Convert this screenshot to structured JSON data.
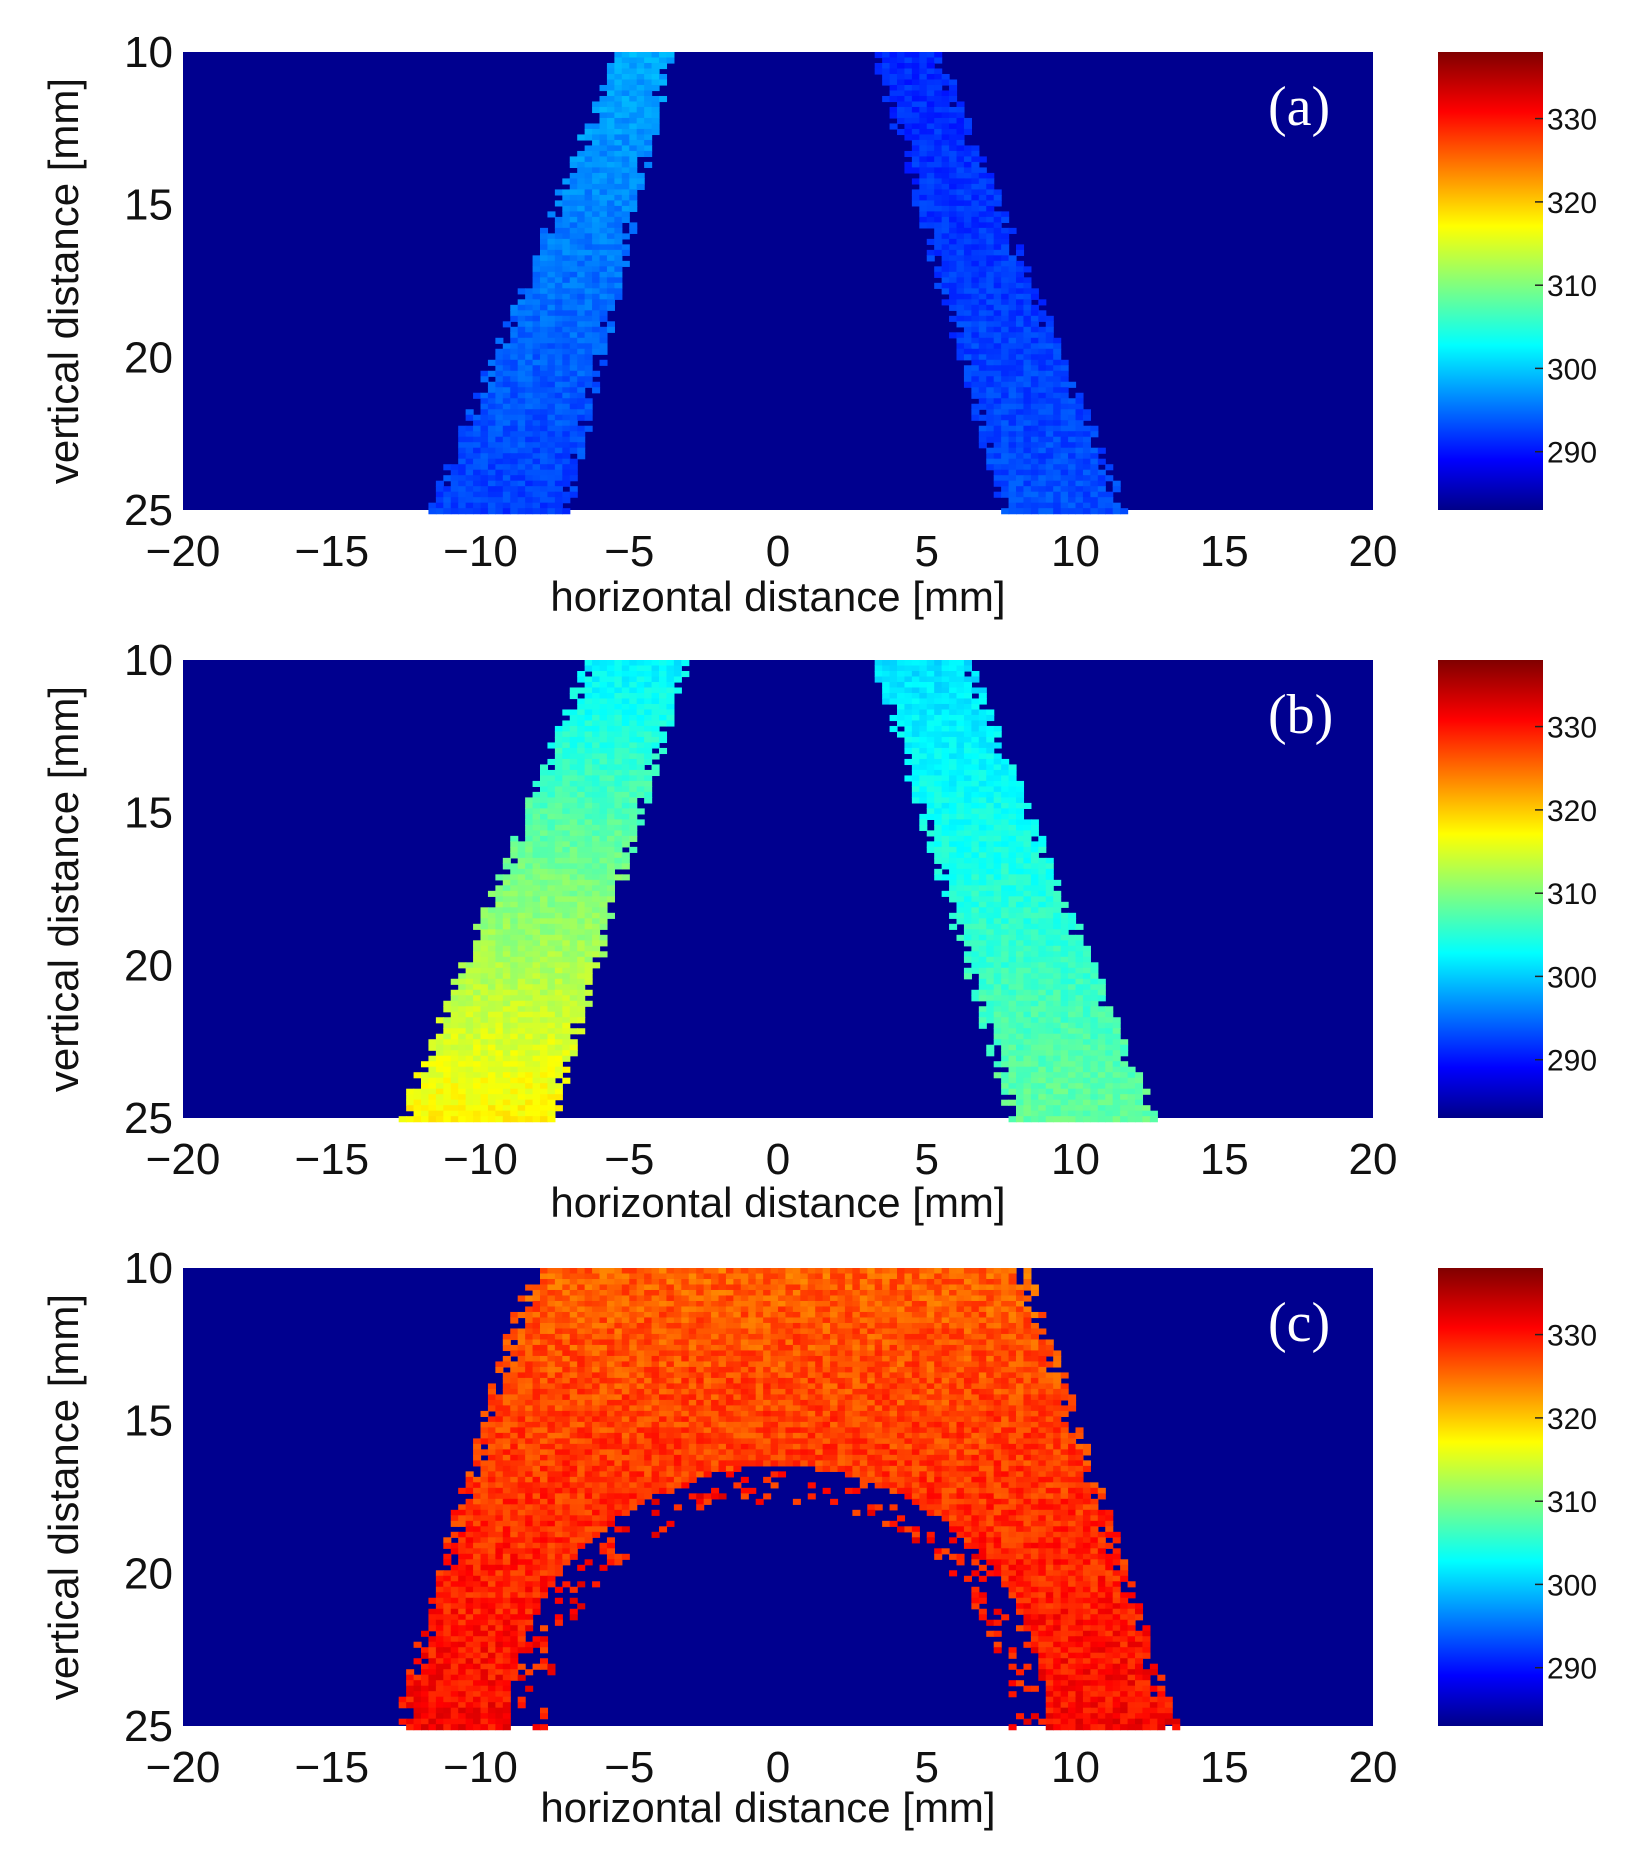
{
  "chart_data": [
    {
      "type": "heatmap",
      "panel_label": "(a)",
      "xlabel": "horizontal distance [mm]",
      "ylabel": "vertical distance [mm]",
      "xlim": [
        -20,
        20
      ],
      "ylim": [
        10,
        25
      ],
      "x_ticks": [
        "−20",
        "−15",
        "−10",
        "−5",
        "0",
        "5",
        "10",
        "15",
        "20"
      ],
      "y_ticks": [
        "10",
        "15",
        "20",
        "25"
      ],
      "colorbar": {
        "min": 283,
        "max": 338,
        "ticks": [
          "290",
          "300",
          "310",
          "320",
          "330"
        ]
      },
      "background_value": 283,
      "description_values": {
        "left_jet": {
          "x_at_y10": [
            -5.5,
            -3.5
          ],
          "x_at_y25": [
            -11.8,
            -7.0
          ],
          "value_top": 299,
          "value_bottom": 293
        },
        "right_jet": {
          "x_at_y10": [
            3.2,
            5.5
          ],
          "x_at_y25": [
            7.5,
            11.8
          ],
          "value_top": 292,
          "value_bottom": 294
        }
      }
    },
    {
      "type": "heatmap",
      "panel_label": "(b)",
      "xlabel": "horizontal distance [mm]",
      "ylabel": "vertical distance [mm]",
      "xlim": [
        -20,
        20
      ],
      "ylim": [
        10,
        25
      ],
      "x_ticks": [
        "−20",
        "−15",
        "−10",
        "−5",
        "0",
        "5",
        "10",
        "15",
        "20"
      ],
      "y_ticks": [
        "10",
        "15",
        "20",
        "25"
      ],
      "colorbar": {
        "min": 283,
        "max": 338,
        "ticks": [
          "290",
          "300",
          "310",
          "320",
          "330"
        ]
      },
      "background_value": 283,
      "description_values": {
        "left_jet": {
          "x_at_y10": [
            -6.5,
            -3.0
          ],
          "x_at_y25": [
            -12.8,
            -7.5
          ],
          "value_top": 303,
          "value_bottom": 318
        },
        "right_jet": {
          "x_at_y10": [
            3.2,
            6.5
          ],
          "x_at_y25": [
            7.8,
            12.8
          ],
          "value_top": 302,
          "value_bottom": 309
        }
      }
    },
    {
      "type": "heatmap",
      "panel_label": "(c)",
      "xlabel": "horizontal distance [mm]",
      "ylabel": "vertical distance [mm]",
      "xlim": [
        -20,
        20
      ],
      "ylim": [
        10,
        25
      ],
      "x_ticks": [
        "−20",
        "−15",
        "−10",
        "−5",
        "0",
        "5",
        "10",
        "15",
        "20"
      ],
      "y_ticks": [
        "10",
        "15",
        "20",
        "25"
      ],
      "colorbar": {
        "min": 283,
        "max": 338,
        "ticks": [
          "290",
          "300",
          "310",
          "320",
          "330"
        ]
      },
      "background_value": 283,
      "description_values": {
        "merged_region": {
          "x_at_y10": [
            -8.5,
            8.5
          ],
          "x_at_y25": [
            -13.0,
            13.5
          ],
          "value_top": 326,
          "value_bottom": 331
        },
        "inner_cold_core_x_at_y25": [
          -9.0,
          9.0
        ],
        "inner_cold_core_top_y": 16.5
      }
    }
  ]
}
